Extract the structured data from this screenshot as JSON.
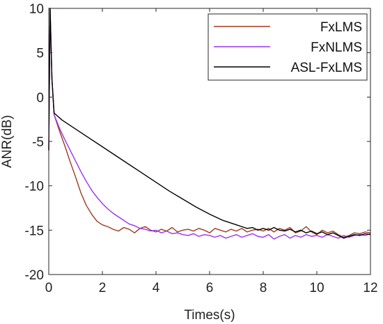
{
  "chart_data": {
    "type": "line",
    "title": "",
    "xlabel": "Times(s)",
    "ylabel": "ANR(dB)",
    "xlim": [
      0,
      12
    ],
    "ylim": [
      -20,
      10
    ],
    "xticks": [
      0,
      2,
      4,
      6,
      8,
      10,
      12
    ],
    "yticks": [
      -20,
      -15,
      -10,
      -5,
      0,
      5,
      10
    ],
    "xtick_labels": [
      "0",
      "2",
      "4",
      "6",
      "8",
      "10",
      "12"
    ],
    "ytick_labels": [
      "-20",
      "-15",
      "-10",
      "-5",
      "0",
      "5",
      "10"
    ],
    "grid": false,
    "legend_position": "top-right",
    "series": [
      {
        "name": "FxLMS",
        "color": "#a0391d",
        "points": [
          [
            0,
            -6
          ],
          [
            0.05,
            10
          ],
          [
            0.12,
            2
          ],
          [
            0.2,
            -2
          ],
          [
            0.4,
            -3.8
          ],
          [
            0.6,
            -5.5
          ],
          [
            0.8,
            -7.3
          ],
          [
            1.0,
            -9.0
          ],
          [
            1.2,
            -10.8
          ],
          [
            1.4,
            -12.2
          ],
          [
            1.6,
            -13.2
          ],
          [
            1.8,
            -14.0
          ],
          [
            2.0,
            -14.4
          ],
          [
            2.2,
            -14.6
          ],
          [
            2.4,
            -14.9
          ],
          [
            2.6,
            -15.1
          ],
          [
            2.8,
            -14.7
          ],
          [
            3.0,
            -14.9
          ],
          [
            3.2,
            -15.3
          ],
          [
            3.4,
            -14.8
          ],
          [
            3.6,
            -14.6
          ],
          [
            3.8,
            -15.0
          ],
          [
            4.0,
            -15.2
          ],
          [
            4.2,
            -14.9
          ],
          [
            4.4,
            -15.1
          ],
          [
            4.6,
            -14.7
          ],
          [
            4.8,
            -15.2
          ],
          [
            5.0,
            -15.0
          ],
          [
            5.2,
            -14.9
          ],
          [
            5.4,
            -15.1
          ],
          [
            5.6,
            -14.8
          ],
          [
            5.8,
            -15.0
          ],
          [
            6.0,
            -15.3
          ],
          [
            6.2,
            -14.8
          ],
          [
            6.4,
            -15.0
          ],
          [
            6.6,
            -15.2
          ],
          [
            6.8,
            -14.9
          ],
          [
            7.0,
            -15.1
          ],
          [
            7.2,
            -14.8
          ],
          [
            7.4,
            -15.2
          ],
          [
            7.6,
            -15.0
          ],
          [
            7.8,
            -14.9
          ],
          [
            8.0,
            -15.1
          ],
          [
            8.2,
            -14.8
          ],
          [
            8.4,
            -15.2
          ],
          [
            8.6,
            -14.8
          ],
          [
            8.8,
            -15.0
          ],
          [
            9.0,
            -14.7
          ],
          [
            9.2,
            -15.3
          ],
          [
            9.4,
            -15.1
          ],
          [
            9.6,
            -14.6
          ],
          [
            9.8,
            -15.2
          ],
          [
            10.0,
            -15.5
          ],
          [
            10.2,
            -15.0
          ],
          [
            10.4,
            -15.3
          ],
          [
            10.6,
            -15.1
          ],
          [
            10.8,
            -15.5
          ],
          [
            11.0,
            -15.8
          ],
          [
            11.2,
            -15.6
          ],
          [
            11.4,
            -15.3
          ],
          [
            11.6,
            -15.4
          ],
          [
            11.8,
            -15.2
          ],
          [
            12.0,
            -15.3
          ]
        ]
      },
      {
        "name": "FxNLMS",
        "color": "#9b30f0",
        "points": [
          [
            0,
            -6
          ],
          [
            0.05,
            10
          ],
          [
            0.12,
            2
          ],
          [
            0.2,
            -2
          ],
          [
            0.4,
            -3.5
          ],
          [
            0.6,
            -4.8
          ],
          [
            0.8,
            -6.0
          ],
          [
            1.0,
            -7.2
          ],
          [
            1.2,
            -8.4
          ],
          [
            1.4,
            -9.5
          ],
          [
            1.6,
            -10.5
          ],
          [
            1.8,
            -11.3
          ],
          [
            2.0,
            -12.0
          ],
          [
            2.2,
            -12.6
          ],
          [
            2.4,
            -13.1
          ],
          [
            2.6,
            -13.5
          ],
          [
            2.8,
            -13.9
          ],
          [
            3.0,
            -14.3
          ],
          [
            3.2,
            -14.5
          ],
          [
            3.4,
            -14.8
          ],
          [
            3.6,
            -14.9
          ],
          [
            3.8,
            -15.1
          ],
          [
            4.0,
            -15.0
          ],
          [
            4.2,
            -15.3
          ],
          [
            4.4,
            -15.1
          ],
          [
            4.6,
            -15.4
          ],
          [
            4.8,
            -15.3
          ],
          [
            5.0,
            -15.5
          ],
          [
            5.2,
            -15.6
          ],
          [
            5.4,
            -15.4
          ],
          [
            5.6,
            -15.7
          ],
          [
            5.8,
            -15.5
          ],
          [
            6.0,
            -15.6
          ],
          [
            6.2,
            -15.8
          ],
          [
            6.4,
            -15.6
          ],
          [
            6.6,
            -15.9
          ],
          [
            6.8,
            -15.7
          ],
          [
            7.0,
            -15.5
          ],
          [
            7.2,
            -15.8
          ],
          [
            7.4,
            -15.6
          ],
          [
            7.6,
            -15.4
          ],
          [
            7.8,
            -15.7
          ],
          [
            8.0,
            -15.8
          ],
          [
            8.2,
            -15.5
          ],
          [
            8.4,
            -16.0
          ],
          [
            8.6,
            -15.7
          ],
          [
            8.8,
            -15.5
          ],
          [
            9.0,
            -15.9
          ],
          [
            9.2,
            -15.6
          ],
          [
            9.4,
            -15.8
          ],
          [
            9.6,
            -15.5
          ],
          [
            9.8,
            -15.7
          ],
          [
            10.0,
            -15.6
          ],
          [
            10.2,
            -15.8
          ],
          [
            10.4,
            -15.5
          ],
          [
            10.6,
            -15.7
          ],
          [
            10.8,
            -15.9
          ],
          [
            11.0,
            -15.6
          ],
          [
            11.2,
            -15.8
          ],
          [
            11.4,
            -15.6
          ],
          [
            11.6,
            -15.5
          ],
          [
            11.8,
            -15.6
          ],
          [
            12.0,
            -15.4
          ]
        ]
      },
      {
        "name": "ASL-FxLMS",
        "color": "#000000",
        "points": [
          [
            0,
            -6
          ],
          [
            0.05,
            10
          ],
          [
            0.12,
            2
          ],
          [
            0.2,
            -1.8
          ],
          [
            0.5,
            -2.6
          ],
          [
            1.0,
            -3.6
          ],
          [
            1.5,
            -4.6
          ],
          [
            2.0,
            -5.6
          ],
          [
            2.5,
            -6.6
          ],
          [
            3.0,
            -7.6
          ],
          [
            3.5,
            -8.6
          ],
          [
            4.0,
            -9.6
          ],
          [
            4.5,
            -10.6
          ],
          [
            5.0,
            -11.5
          ],
          [
            5.5,
            -12.4
          ],
          [
            6.0,
            -13.2
          ],
          [
            6.5,
            -13.9
          ],
          [
            7.0,
            -14.4
          ],
          [
            7.2,
            -14.6
          ],
          [
            7.4,
            -14.8
          ],
          [
            7.6,
            -14.7
          ],
          [
            7.8,
            -15.0
          ],
          [
            8.0,
            -14.8
          ],
          [
            8.2,
            -15.0
          ],
          [
            8.4,
            -14.7
          ],
          [
            8.6,
            -15.0
          ],
          [
            8.8,
            -15.1
          ],
          [
            9.0,
            -14.9
          ],
          [
            9.2,
            -15.2
          ],
          [
            9.4,
            -15.0
          ],
          [
            9.6,
            -15.3
          ],
          [
            9.8,
            -15.1
          ],
          [
            10.0,
            -15.4
          ],
          [
            10.2,
            -15.2
          ],
          [
            10.4,
            -15.5
          ],
          [
            10.6,
            -15.3
          ],
          [
            10.8,
            -15.6
          ],
          [
            11.0,
            -15.9
          ],
          [
            11.2,
            -15.7
          ],
          [
            11.4,
            -15.5
          ],
          [
            11.6,
            -15.6
          ],
          [
            11.8,
            -15.4
          ],
          [
            12.0,
            -15.5
          ]
        ]
      }
    ]
  }
}
